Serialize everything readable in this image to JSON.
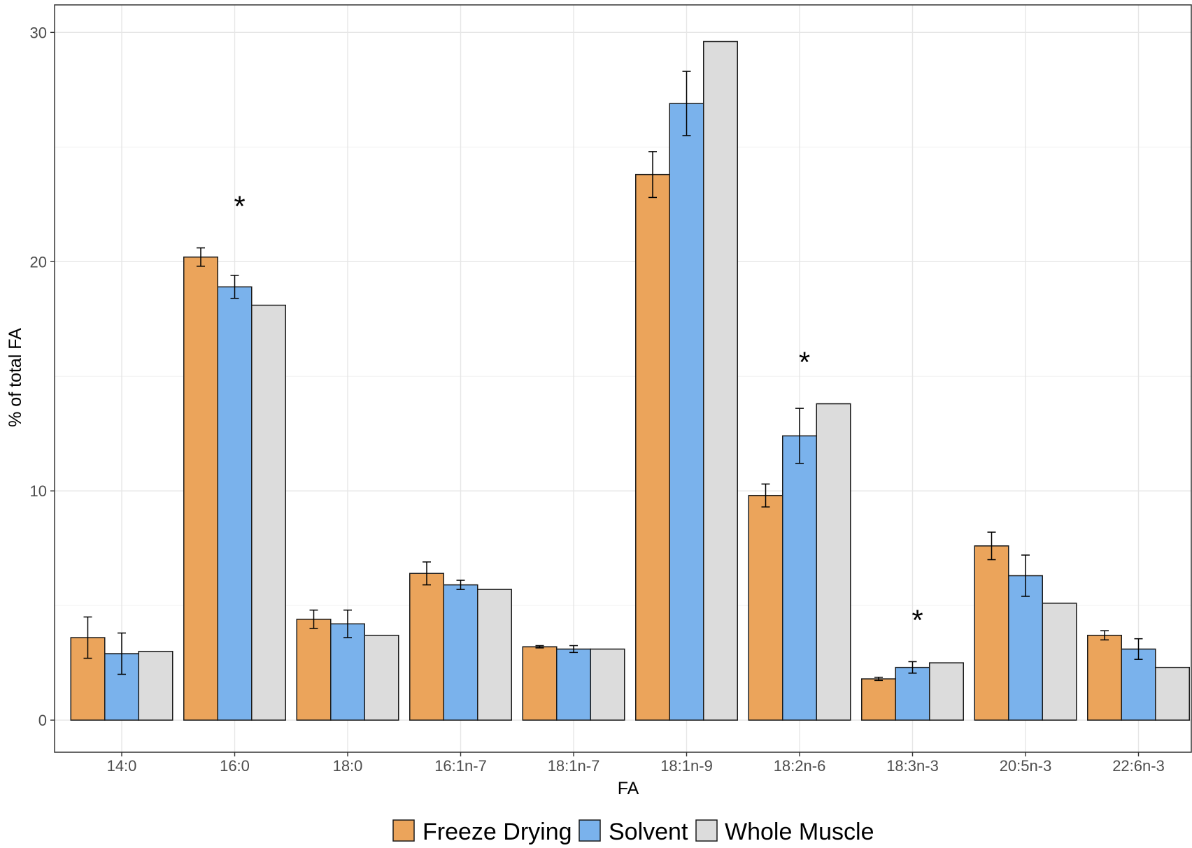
{
  "chart_data": {
    "type": "bar",
    "xlabel": "FA",
    "ylabel": "% of total FA",
    "ylim": [
      -1.4,
      31.2
    ],
    "yticks": [
      0,
      10,
      20,
      30
    ],
    "grid": true,
    "legend_position": "bottom",
    "categories": [
      "14:0",
      "16:0",
      "18:0",
      "16:1n-7",
      "18:1n-7",
      "18:1n-9",
      "18:2n-6",
      "18:3n-3",
      "20:5n-3",
      "22:6n-3"
    ],
    "series": [
      {
        "name": "Freeze Drying",
        "color": "#eba45b",
        "values": [
          3.6,
          20.2,
          4.4,
          6.4,
          3.2,
          23.8,
          9.8,
          1.8,
          7.6,
          3.7
        ],
        "error": [
          0.9,
          0.4,
          0.4,
          0.5,
          0.05,
          1.0,
          0.5,
          0.07,
          0.6,
          0.2
        ]
      },
      {
        "name": "Solvent",
        "color": "#7ab2ec",
        "values": [
          2.9,
          18.9,
          4.2,
          5.9,
          3.1,
          26.9,
          12.4,
          2.3,
          6.3,
          3.1
        ],
        "error": [
          0.9,
          0.5,
          0.6,
          0.2,
          0.15,
          1.4,
          1.2,
          0.25,
          0.9,
          0.45
        ]
      },
      {
        "name": "Whole Muscle",
        "color": "#dcdcdc",
        "values": [
          3.0,
          18.1,
          3.7,
          5.7,
          3.1,
          29.6,
          13.8,
          2.5,
          5.1,
          2.3
        ],
        "error": null
      }
    ],
    "annotations": [
      {
        "category": "16:0",
        "text": "*"
      },
      {
        "category": "18:1n-9",
        "text": "*"
      },
      {
        "category": "18:2n-6",
        "text": "*"
      },
      {
        "category": "18:3n-3",
        "text": "*"
      }
    ]
  }
}
